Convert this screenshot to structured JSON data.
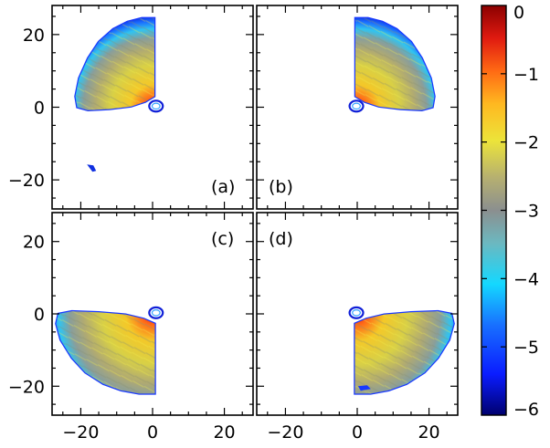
{
  "chart_data": {
    "type": "heatmap",
    "description_units": "log-scaled colour map, four panels sharing axes",
    "xlim": [
      -28,
      28
    ],
    "ylim": [
      -28,
      28
    ],
    "x_ticks": [
      -20,
      0,
      20
    ],
    "y_ticks": [
      -20,
      0,
      20
    ],
    "x_tick_labels": [
      "−20",
      "0",
      "20"
    ],
    "y_tick_labels": [
      "−20",
      "0",
      "20"
    ],
    "colorbar": {
      "min": -6,
      "max": 0,
      "ticks": [
        0,
        -1,
        -2,
        -3,
        -4,
        -5,
        -6
      ],
      "tick_labels": [
        "0",
        "−1",
        "−2",
        "−3",
        "−4",
        "−5",
        "−6"
      ],
      "colormap": "rainbow (dark blue → cyan → grey → yellow → orange → red)"
    },
    "panels": [
      {
        "label": "(a)",
        "position": "top-left",
        "lobe_direction": "up-left"
      },
      {
        "label": "(b)",
        "position": "top-right",
        "lobe_direction": "up-right"
      },
      {
        "label": "(c)",
        "position": "bottom-left",
        "lobe_direction": "down-left"
      },
      {
        "label": "(d)",
        "position": "bottom-right",
        "lobe_direction": "down-right"
      }
    ]
  },
  "colors": {
    "deep_blue": "#00008b",
    "blue": "#1a3cff",
    "cyan": "#19d6ff",
    "grey": "#8a8e8e",
    "yellow": "#e8e23a",
    "orange": "#ff8a1e",
    "red": "#e01a10",
    "dark_red": "#8b0000"
  }
}
